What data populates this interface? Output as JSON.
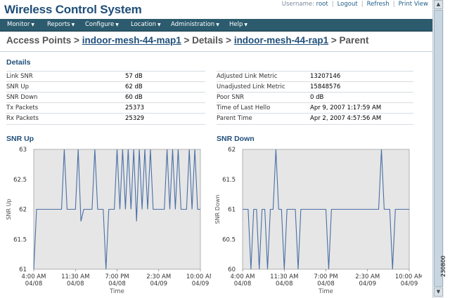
{
  "app_title": "Wireless Control System",
  "top_links": {
    "username_label": "Username:",
    "username": "root",
    "logout": "Logout",
    "refresh": "Refresh",
    "print_view": "Print View"
  },
  "menu": [
    "Monitor",
    "Reports",
    "Configure",
    "Location",
    "Administration",
    "Help"
  ],
  "breadcrumb": {
    "root": "Access Points >",
    "map": "indoor-mesh-44-map1",
    "sep1": "> Details >",
    "rap": "indoor-mesh-44-rap1",
    "sep2": "> Parent"
  },
  "details_title": "Details",
  "details_left": [
    {
      "label": "Link SNR",
      "value": "57 dB"
    },
    {
      "label": "SNR Up",
      "value": "62 dB"
    },
    {
      "label": "SNR Down",
      "value": "60 dB"
    },
    {
      "label": "Tx Packets",
      "value": "25373"
    },
    {
      "label": "Rx Packets",
      "value": "25329"
    }
  ],
  "details_right": [
    {
      "label": "Adjusted Link Metric",
      "value": "13207146"
    },
    {
      "label": "Unadjusted Link Metric",
      "value": "15848576"
    },
    {
      "label": "Poor SNR",
      "value": "0 dB"
    },
    {
      "label": "Time of Last Hello",
      "value": "Apr 9, 2007 1:17:59 AM"
    },
    {
      "label": "Parent Time",
      "value": "Apr 2, 2007 4:57:56 AM"
    }
  ],
  "side_id": "230800",
  "colors": {
    "line": "#4a6fa5",
    "plot_bg": "#e6e6e6",
    "brand": "#1f4e79",
    "menubar": "#2c5b6e"
  },
  "chart_data": [
    {
      "type": "line",
      "title": "SNR Up",
      "ylabel": "SNR Up",
      "xlabel": "Time",
      "ylim": [
        61,
        63
      ],
      "yticks": [
        "63",
        "62.5",
        "62",
        "61.5",
        "61"
      ],
      "xticks": [
        {
          "t": "4:00 AM",
          "d": "04/08"
        },
        {
          "t": "11:30 AM",
          "d": "04/08"
        },
        {
          "t": "7:00 PM",
          "d": "04/08"
        },
        {
          "t": "2:30 AM",
          "d": "04/09"
        },
        {
          "t": "10:00 AM",
          "d": "04/09"
        }
      ],
      "xrange": [
        0,
        30
      ],
      "x": [
        0,
        0.5,
        1,
        1.5,
        2,
        2.5,
        3,
        3.5,
        4,
        4.5,
        5,
        5.5,
        6,
        6.5,
        7,
        7.5,
        8,
        8.5,
        9,
        9.5,
        10,
        10.5,
        11,
        11.5,
        12,
        12.5,
        13,
        13.5,
        14,
        14.5,
        15,
        15.5,
        16,
        16.5,
        17,
        17.5,
        18,
        18.5,
        19,
        19.5,
        20,
        20.5,
        21,
        21.5,
        22,
        22.5,
        23,
        23.5,
        24,
        24.5,
        25,
        25.5,
        26,
        26.5,
        27,
        27.5,
        28,
        28.5,
        29,
        29.5,
        30
      ],
      "values": [
        61,
        62,
        62,
        62,
        62,
        62,
        62,
        62,
        62,
        62,
        62,
        63,
        62,
        62,
        62,
        62,
        63,
        61.8,
        62,
        62,
        62,
        62,
        63,
        62,
        62,
        62,
        61,
        62,
        62,
        62,
        63,
        62,
        63,
        62,
        63,
        62,
        63,
        61.8,
        63,
        62,
        63,
        62,
        63,
        62,
        62,
        62,
        62,
        62,
        63,
        62,
        63,
        62,
        63,
        62,
        62,
        62,
        63,
        62,
        63,
        62,
        62
      ]
    },
    {
      "type": "line",
      "title": "SNR Down",
      "ylabel": "SNR Down",
      "xlabel": "Time",
      "ylim": [
        60,
        62
      ],
      "yticks": [
        "62",
        "61.5",
        "61",
        "60.5",
        "60"
      ],
      "xticks": [
        {
          "t": "4:00 AM",
          "d": "04/08"
        },
        {
          "t": "11:30 AM",
          "d": "04/08"
        },
        {
          "t": "7:00 PM",
          "d": "04/08"
        },
        {
          "t": "2:30 AM",
          "d": "04/09"
        },
        {
          "t": "10:00 AM",
          "d": "04/09"
        }
      ],
      "xrange": [
        0,
        30
      ],
      "x": [
        0,
        0.5,
        1,
        1.5,
        2,
        2.5,
        3,
        3.5,
        4,
        4.5,
        5,
        5.5,
        6,
        6.5,
        7,
        7.5,
        8,
        8.5,
        9,
        9.5,
        10,
        10.5,
        11,
        11.5,
        12,
        12.5,
        13,
        13.5,
        14,
        14.5,
        15,
        15.5,
        16,
        16.5,
        17,
        17.5,
        18,
        18.5,
        19,
        19.5,
        20,
        20.5,
        21,
        21.5,
        22,
        22.5,
        23,
        23.5,
        24,
        24.5,
        25,
        25.5,
        26,
        26.5,
        27,
        27.5,
        28,
        28.5,
        29,
        29.5,
        30
      ],
      "values": [
        61,
        61,
        61,
        60,
        61,
        61,
        60,
        61,
        61,
        60,
        61,
        61,
        62,
        61,
        61,
        60,
        61,
        61,
        61,
        61,
        60,
        61,
        61,
        61,
        61,
        61,
        61,
        61,
        61,
        61,
        61,
        60,
        61,
        61,
        61,
        61,
        61,
        61,
        61,
        61,
        61,
        61,
        61,
        61,
        61,
        61,
        61,
        61,
        61,
        61,
        62,
        61,
        61,
        61,
        60,
        61,
        61,
        61,
        61,
        61,
        61
      ]
    }
  ]
}
